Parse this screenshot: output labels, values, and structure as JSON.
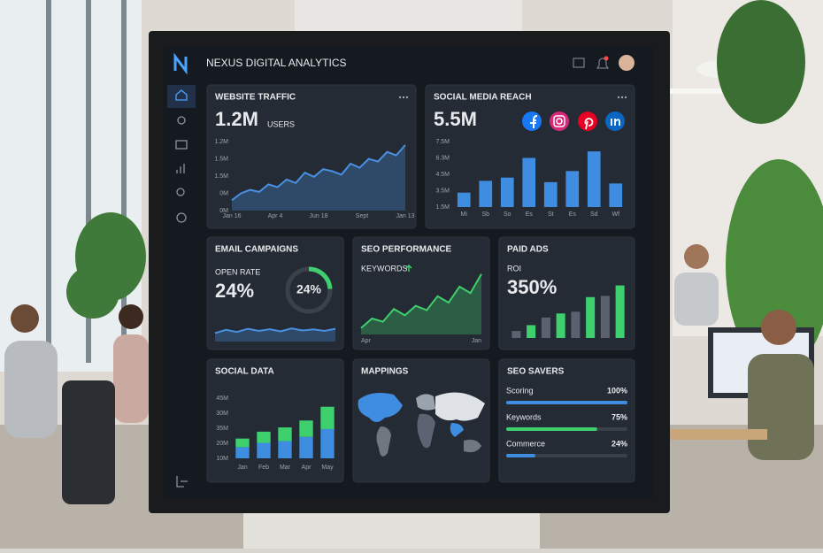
{
  "header": {
    "title": "NEXUS DIGITAL ANALYTICS"
  },
  "dashboard": {
    "website_traffic": {
      "title": "WEBSITE TRAFFIC",
      "value": "1.2M",
      "unit": "USERS",
      "y_labels": [
        "1.2M",
        "1.5M",
        "1.5M",
        "0M",
        "0M"
      ],
      "x_labels": [
        "Jan 16",
        "Apr 4",
        "Jun 18",
        "Sept",
        "Jan 13"
      ],
      "ylim": [
        0,
        100
      ],
      "values": [
        15,
        25,
        30,
        27,
        38,
        34,
        45,
        40,
        55,
        49,
        60,
        57,
        52,
        68,
        62,
        75,
        71,
        85,
        80,
        95
      ]
    },
    "social_media_reach": {
      "title": "SOCIAL MEDIA REACH",
      "value": "5.5M",
      "y_labels": [
        "7.5M",
        "6.3M",
        "4.5M",
        "3.5M",
        "1.5M"
      ],
      "categories": [
        "Mi",
        "Sb",
        "So",
        "Es",
        "St",
        "Es",
        "Sd",
        "Wf"
      ],
      "ylim": [
        0,
        100
      ],
      "values": [
        22,
        40,
        45,
        75,
        38,
        55,
        85,
        36
      ]
    },
    "email_campaigns": {
      "title": "EMAIL CAMPAIGNS",
      "metric": "OPEN RATE",
      "open_rate": 24,
      "open_rate_label": "24%",
      "ylim": [
        0,
        100
      ],
      "values": [
        40,
        55,
        45,
        60,
        50,
        58,
        48,
        62,
        52,
        57,
        50,
        60
      ]
    },
    "seo_performance": {
      "title": "SEO PERFORMANCE",
      "metric": "KEYWORDS",
      "x_labels": [
        "Apr",
        "Jan"
      ],
      "ylim": [
        0,
        100
      ],
      "values": [
        10,
        25,
        20,
        40,
        30,
        45,
        38,
        60,
        50,
        75,
        65,
        95
      ]
    },
    "paid_ads": {
      "title": "PAID ADS",
      "metric": "ROI",
      "value": "350%",
      "ylim": [
        0,
        100
      ],
      "values": [
        12,
        22,
        35,
        42,
        45,
        70,
        72,
        90
      ],
      "colors": [
        "#5a6270",
        "#3ecf6e",
        "#5a6270",
        "#3ecf6e",
        "#5a6270",
        "#3ecf6e",
        "#5a6270",
        "#3ecf6e"
      ]
    },
    "social_data": {
      "title": "SOCIAL DATA",
      "y_labels": [
        "45M",
        "30M",
        "35M",
        "20M",
        "10M"
      ],
      "categories": [
        "Jan",
        "Feb",
        "Mar",
        "Apr",
        "May"
      ],
      "ylim": [
        0,
        70
      ],
      "series": [
        {
          "color": "#3f8de0",
          "values": [
            13,
            18,
            20,
            25,
            34
          ]
        },
        {
          "color": "#3ecf6e",
          "values": [
            10,
            13,
            16,
            19,
            26
          ]
        }
      ]
    },
    "mappings": {
      "title": "MAPPINGS"
    },
    "seo_savers": {
      "title": "SEO SAVERS",
      "rows": [
        {
          "label": "Scoring",
          "value": 100,
          "value_label": "100%",
          "color": "#3f8de0"
        },
        {
          "label": "Keywords",
          "value": 75,
          "value_label": "75%",
          "color": "#3ecf6e"
        },
        {
          "label": "Commerce",
          "value": 24,
          "value_label": "24%",
          "color": "#3f8de0"
        }
      ]
    }
  }
}
